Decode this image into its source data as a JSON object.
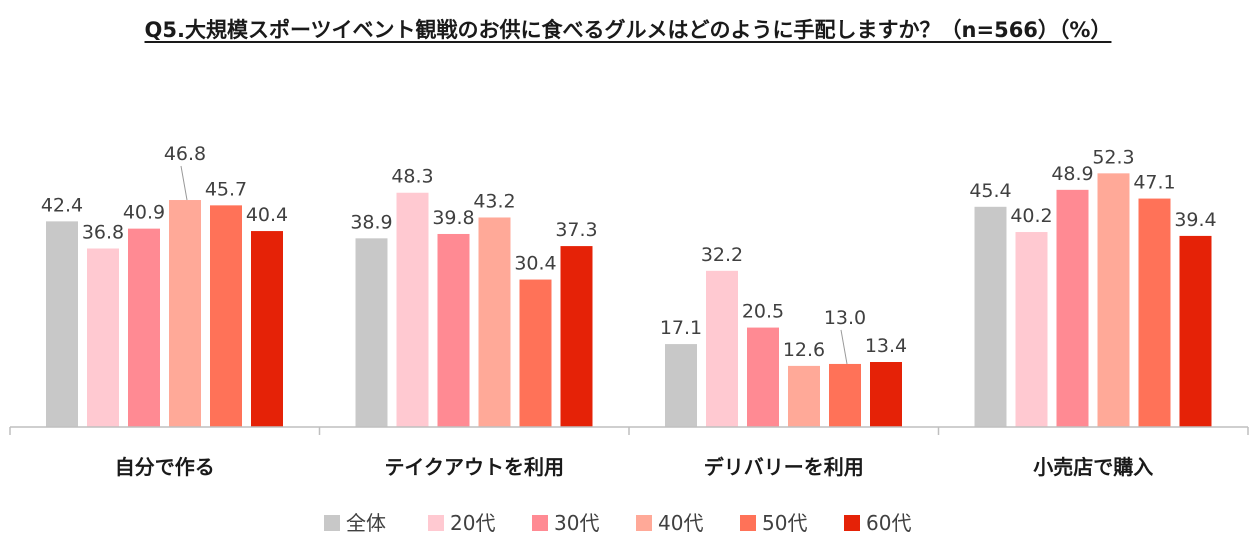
{
  "chart_data": {
    "type": "bar",
    "title": "Q5.大規模スポーツイベント観戦のお供に食べるグルメはどのように手配しますか？（n=566）（%）",
    "xlabel": "",
    "ylabel": "",
    "ylim": [
      0,
      55
    ],
    "grid": false,
    "legend_position": "bottom",
    "categories": [
      "自分で作る",
      "テイクアウトを利用",
      "デリバリーを利用",
      "小売店で購入"
    ],
    "series": [
      {
        "name": "全体",
        "color": "#c8c8c8",
        "values": [
          42.4,
          38.9,
          17.1,
          45.4
        ]
      },
      {
        "name": "20代",
        "color": "#ffc9d1",
        "values": [
          36.8,
          48.3,
          32.2,
          40.2
        ]
      },
      {
        "name": "30代",
        "color": "#ff8a93",
        "values": [
          40.9,
          39.8,
          20.5,
          48.9
        ]
      },
      {
        "name": "40代",
        "color": "#ffa998",
        "values": [
          46.8,
          43.2,
          12.6,
          52.3
        ]
      },
      {
        "name": "50代",
        "color": "#ff7258",
        "values": [
          45.7,
          30.4,
          13.0,
          47.1
        ]
      },
      {
        "name": "60代",
        "color": "#e52207",
        "values": [
          40.4,
          37.3,
          13.4,
          39.4
        ]
      }
    ]
  }
}
